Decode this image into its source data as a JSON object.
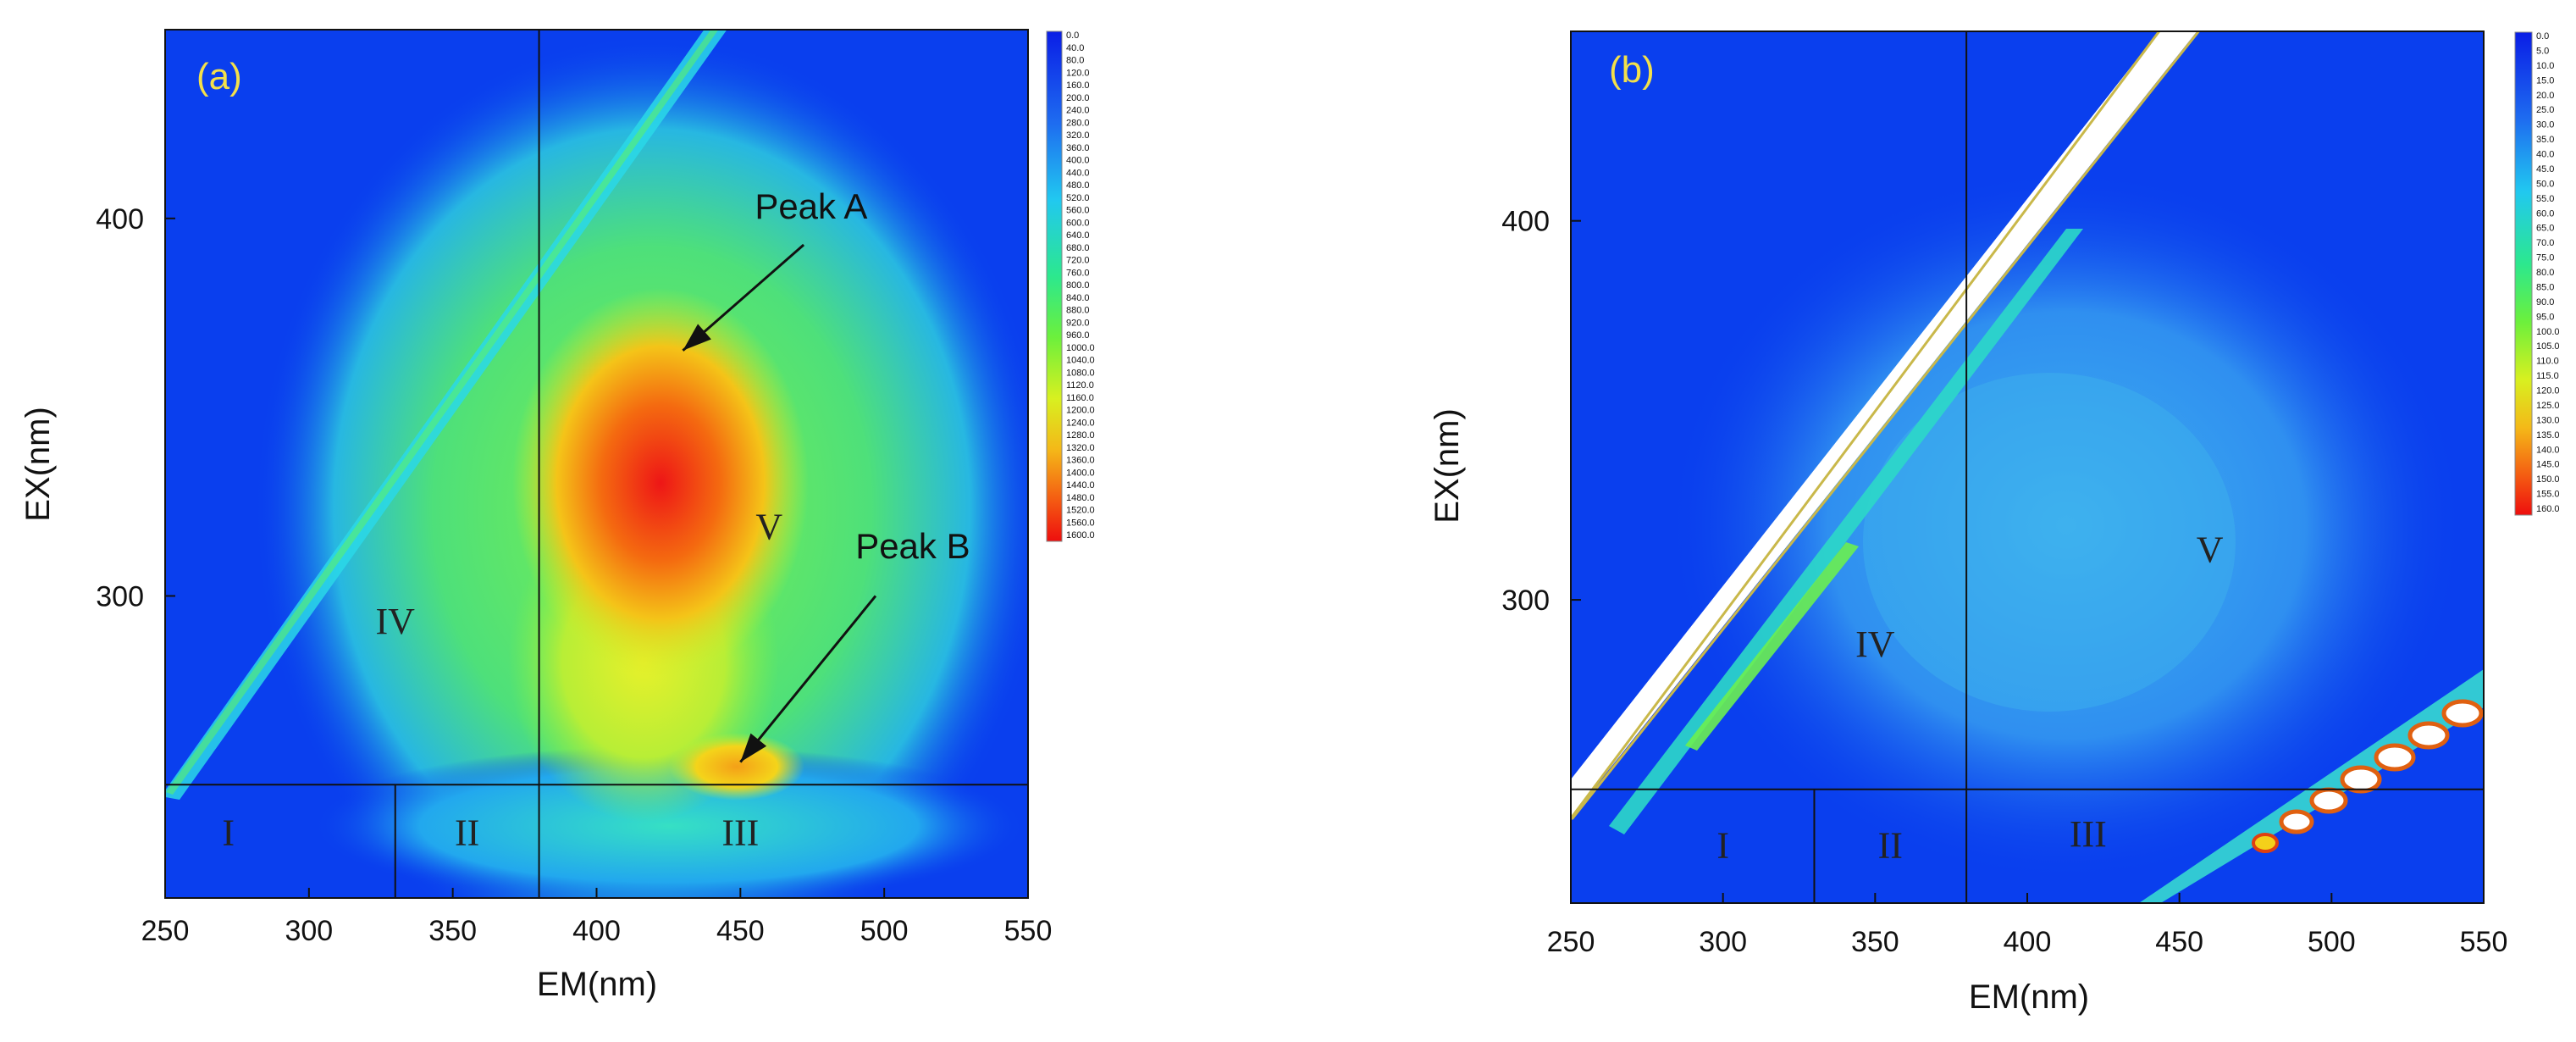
{
  "chart_data": [
    {
      "type": "heatmap",
      "panel": "(a)",
      "xlabel": "EM(nm)",
      "ylabel": "EX(nm)",
      "xlim": [
        250,
        550
      ],
      "ylim": [
        220,
        450
      ],
      "x_ticks": [
        250,
        300,
        350,
        400,
        450,
        500,
        550
      ],
      "y_ticks": [
        300,
        400
      ],
      "colorbar_ticks": [
        "0.0",
        "40.0",
        "80.0",
        "120.0",
        "160.0",
        "200.0",
        "240.0",
        "280.0",
        "320.0",
        "360.0",
        "400.0",
        "440.0",
        "480.0",
        "520.0",
        "560.0",
        "600.0",
        "640.0",
        "680.0",
        "720.0",
        "760.0",
        "800.0",
        "840.0",
        "880.0",
        "920.0",
        "960.0",
        "1000.0",
        "1040.0",
        "1080.0",
        "1120.0",
        "1160.0",
        "1200.0",
        "1240.0",
        "1280.0",
        "1320.0",
        "1360.0",
        "1400.0",
        "1440.0",
        "1480.0",
        "1520.0",
        "1560.0",
        "1600.0"
      ],
      "colorbar_range": [
        0,
        1600
      ],
      "region_lines": {
        "ex": 250,
        "em_vertical_full": 380,
        "em_vertical_lower": 330
      },
      "regions": [
        {
          "label": "I",
          "em": 272,
          "ex": 234
        },
        {
          "label": "II",
          "em": 355,
          "ex": 234
        },
        {
          "label": "III",
          "em": 450,
          "ex": 234
        },
        {
          "label": "IV",
          "em": 330,
          "ex": 290
        },
        {
          "label": "V",
          "em": 460,
          "ex": 315
        }
      ],
      "annotations": [
        {
          "text": "Peak A",
          "text_em": 455,
          "text_ex": 400,
          "tail_em": 472,
          "tail_ex": 393,
          "head_em": 430,
          "head_ex": 365
        },
        {
          "text": "Peak B",
          "text_em": 490,
          "text_ex": 310,
          "tail_em": 497,
          "tail_ex": 300,
          "head_em": 450,
          "head_ex": 256
        }
      ]
    },
    {
      "type": "heatmap",
      "panel": "(b)",
      "xlabel": "EM(nm)",
      "ylabel": "EX(nm)",
      "xlim": [
        250,
        550
      ],
      "ylim": [
        220,
        450
      ],
      "x_ticks": [
        250,
        300,
        350,
        400,
        450,
        500,
        550
      ],
      "y_ticks": [
        300,
        400
      ],
      "colorbar_ticks": [
        "0.0",
        "5.0",
        "10.0",
        "15.0",
        "20.0",
        "25.0",
        "30.0",
        "35.0",
        "40.0",
        "45.0",
        "50.0",
        "55.0",
        "60.0",
        "65.0",
        "70.0",
        "75.0",
        "80.0",
        "85.0",
        "90.0",
        "95.0",
        "100.0",
        "105.0",
        "110.0",
        "115.0",
        "120.0",
        "125.0",
        "130.0",
        "135.0",
        "140.0",
        "145.0",
        "150.0",
        "155.0",
        "160.0"
      ],
      "colorbar_range": [
        0,
        160
      ],
      "region_lines": {
        "ex": 250,
        "em_vertical_full": 380,
        "em_vertical_lower": 330
      },
      "regions": [
        {
          "label": "I",
          "em": 300,
          "ex": 232
        },
        {
          "label": "II",
          "em": 355,
          "ex": 232
        },
        {
          "label": "III",
          "em": 420,
          "ex": 235
        },
        {
          "label": "IV",
          "em": 350,
          "ex": 285
        },
        {
          "label": "V",
          "em": 460,
          "ex": 310
        }
      ],
      "annotations": []
    }
  ]
}
